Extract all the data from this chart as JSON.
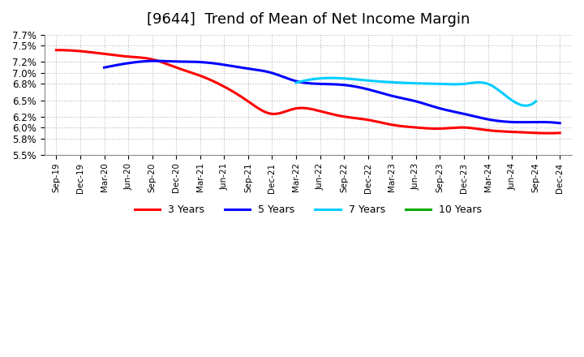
{
  "title": "[9644]  Trend of Mean of Net Income Margin",
  "title_fontsize": 13,
  "background_color": "#ffffff",
  "grid_color": "#b0b0b0",
  "ylim": [
    0.055,
    0.077
  ],
  "x_labels": [
    "Sep-19",
    "Dec-19",
    "Mar-20",
    "Jun-20",
    "Sep-20",
    "Dec-20",
    "Mar-21",
    "Jun-21",
    "Sep-21",
    "Dec-21",
    "Mar-22",
    "Jun-22",
    "Sep-22",
    "Dec-22",
    "Mar-23",
    "Jun-23",
    "Sep-23",
    "Dec-23",
    "Mar-24",
    "Jun-24",
    "Sep-24",
    "Dec-24"
  ],
  "series": {
    "3 Years": {
      "color": "#ff0000",
      "data_x": [
        0,
        1,
        2,
        3,
        4,
        5,
        6,
        7,
        8,
        9,
        10,
        11,
        12,
        13,
        14,
        15,
        16,
        17,
        18,
        19,
        20,
        21
      ],
      "data_y": [
        0.0742,
        0.074,
        0.0735,
        0.073,
        0.0725,
        0.071,
        0.0695,
        0.0675,
        0.0648,
        0.0625,
        0.0635,
        0.063,
        0.062,
        0.0614,
        0.0605,
        0.06,
        0.0598,
        0.06,
        0.0595,
        0.0592,
        0.059,
        0.059
      ]
    },
    "5 Years": {
      "color": "#0000ff",
      "data_x": [
        2,
        3,
        4,
        5,
        6,
        7,
        8,
        9,
        10,
        11,
        12,
        13,
        14,
        15,
        16,
        17,
        18,
        19,
        20,
        21
      ],
      "data_y": [
        0.071,
        0.0718,
        0.0722,
        0.0721,
        0.072,
        0.0715,
        0.0708,
        0.07,
        0.0685,
        0.068,
        0.0678,
        0.067,
        0.0658,
        0.0648,
        0.0635,
        0.0625,
        0.0615,
        0.061,
        0.061,
        0.0608
      ]
    },
    "7 Years": {
      "color": "#00ccff",
      "data_x": [
        10,
        11,
        12,
        13,
        14,
        15,
        16,
        17,
        18,
        19,
        20
      ],
      "data_y": [
        0.0682,
        0.069,
        0.069,
        0.0686,
        0.0683,
        0.0681,
        0.068,
        0.068,
        0.068,
        0.065,
        0.0648
      ]
    },
    "10 Years": {
      "color": "#00aa00",
      "data_x": [],
      "data_y": []
    }
  },
  "legend_entries": [
    "3 Years",
    "5 Years",
    "7 Years",
    "10 Years"
  ],
  "legend_colors": [
    "#ff0000",
    "#0000ff",
    "#00ccff",
    "#00aa00"
  ]
}
